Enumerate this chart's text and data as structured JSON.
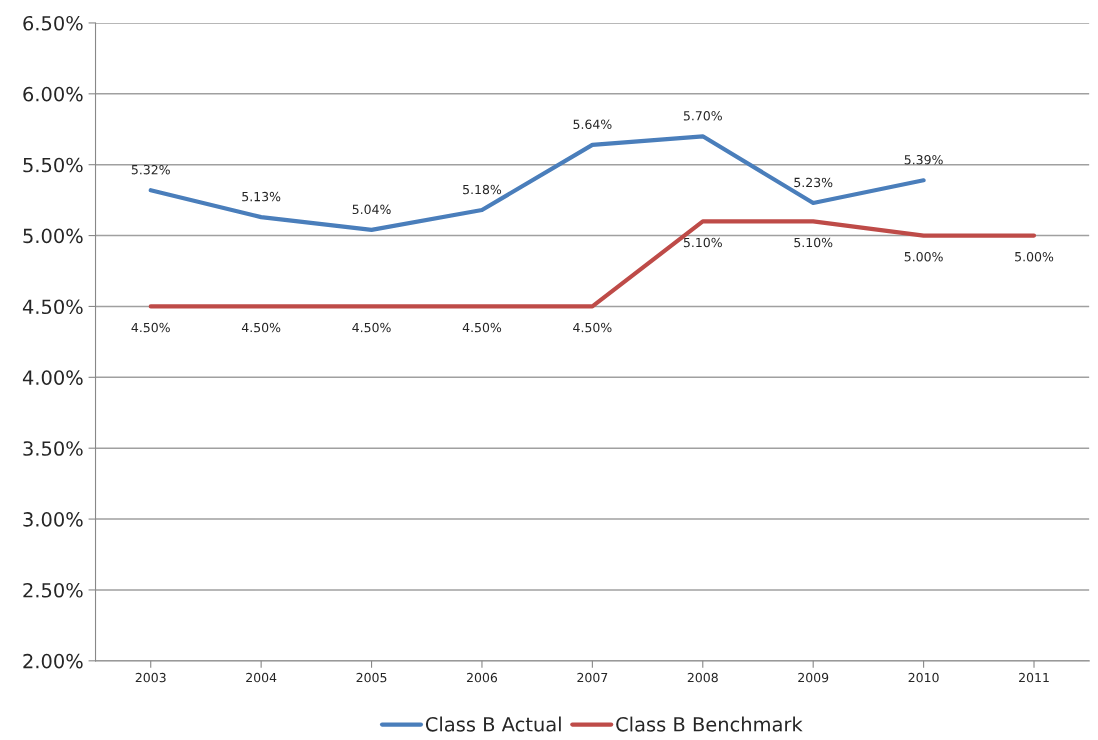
{
  "chart_data": {
    "type": "line",
    "categories": [
      "2003",
      "2004",
      "2005",
      "2006",
      "2007",
      "2008",
      "2009",
      "2010",
      "2011"
    ],
    "series": [
      {
        "name": "Class B Actual",
        "color": "#4a7ebb",
        "values": [
          5.32,
          5.13,
          5.04,
          5.18,
          5.64,
          5.7,
          5.23,
          5.39,
          null
        ],
        "value_labels": [
          "5.32%",
          "5.13%",
          "5.04%",
          "5.18%",
          "5.64%",
          "5.70%",
          "5.23%",
          "5.39%",
          null
        ]
      },
      {
        "name": "Class B Benchmark",
        "color": "#be4b48",
        "values": [
          4.5,
          4.5,
          4.5,
          4.5,
          4.5,
          5.1,
          5.1,
          5.0,
          5.0
        ],
        "value_labels": [
          "4.50%",
          "4.50%",
          "4.50%",
          "4.50%",
          "4.50%",
          "5.10%",
          "5.10%",
          "5.00%",
          "5.00%"
        ]
      }
    ],
    "ylim": [
      2.0,
      6.5
    ],
    "yticks": [
      {
        "value": 2.0,
        "label": "2.00%"
      },
      {
        "value": 2.5,
        "label": "2.50%"
      },
      {
        "value": 3.0,
        "label": "3.00%"
      },
      {
        "value": 3.5,
        "label": "3.50%"
      },
      {
        "value": 4.0,
        "label": "4.00%"
      },
      {
        "value": 4.5,
        "label": "4.50%"
      },
      {
        "value": 5.0,
        "label": "5.00%"
      },
      {
        "value": 5.5,
        "label": "5.50%"
      },
      {
        "value": 6.0,
        "label": "6.00%"
      },
      {
        "value": 6.5,
        "label": "6.50%"
      }
    ],
    "grid": "y",
    "legend": "bottom",
    "marker": "none",
    "line_style": "solid"
  }
}
